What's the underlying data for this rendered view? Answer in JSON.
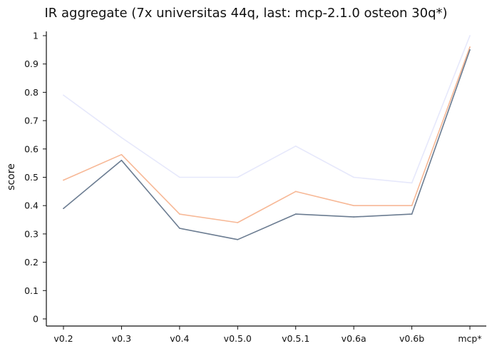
{
  "chart_data": {
    "type": "line",
    "title": "IR aggregate (7x universitas 44q, last: mcp-2.1.0 osteon 30q*)",
    "xlabel": "",
    "ylabel": "score",
    "categories": [
      "v0.2",
      "v0.3",
      "v0.4",
      "v0.5.0",
      "v0.5.1",
      "v0.6a",
      "v0.6b",
      "mcp*"
    ],
    "ylim": [
      0,
      1
    ],
    "yticks": [
      "0",
      "0.1",
      "0.2",
      "0.3",
      "0.4",
      "0.5",
      "0.6",
      "0.7",
      "0.8",
      "0.9",
      "1"
    ],
    "grid": false,
    "legend": "none",
    "series": [
      {
        "color": "#e6e8fb",
        "values": [
          0.79,
          0.64,
          0.5,
          0.5,
          0.61,
          0.5,
          0.48,
          1.0
        ]
      },
      {
        "color": "#f7b896",
        "values": [
          0.49,
          0.58,
          0.37,
          0.34,
          0.45,
          0.4,
          0.4,
          0.96
        ]
      },
      {
        "color": "#6b7c91",
        "values": [
          0.39,
          0.56,
          0.32,
          0.28,
          0.37,
          0.36,
          0.37,
          0.95
        ]
      }
    ]
  }
}
